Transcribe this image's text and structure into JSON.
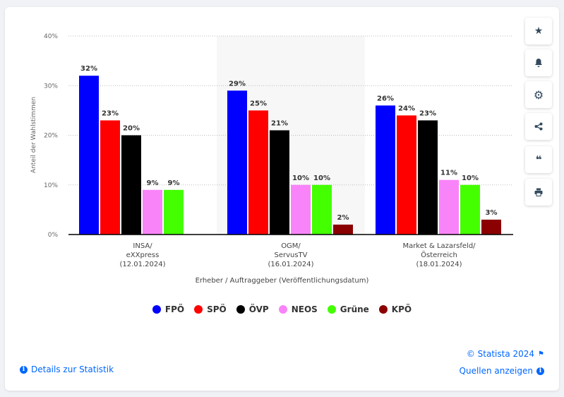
{
  "chart_data": {
    "type": "bar",
    "title": "",
    "xlabel": "Erheber / Auftraggeber (Veröffentlichungsdatum)",
    "ylabel": "Anteil der Wahlstimmen",
    "ylim": [
      0,
      40
    ],
    "yticks": [
      "0%",
      "10%",
      "20%",
      "30%",
      "40%"
    ],
    "grid": true,
    "legend_position": "bottom",
    "categories": [
      [
        "INSA/",
        "eXXpress",
        "(12.01.2024)"
      ],
      [
        "OGM/",
        "ServusTV",
        "(16.01.2024)"
      ],
      [
        "Market & Lazarsfeld/",
        "Österreich",
        "(18.01.2024)"
      ]
    ],
    "series": [
      {
        "name": "FPÖ",
        "color": "#0000ff",
        "values": [
          32,
          29,
          26
        ]
      },
      {
        "name": "SPÖ",
        "color": "#ff0000",
        "values": [
          23,
          25,
          24
        ]
      },
      {
        "name": "ÖVP",
        "color": "#000000",
        "values": [
          20,
          21,
          23
        ]
      },
      {
        "name": "NEOS",
        "color": "#f984f9",
        "values": [
          9,
          10,
          11
        ]
      },
      {
        "name": "Grüne",
        "color": "#44ff00",
        "values": [
          9,
          10,
          10
        ]
      },
      {
        "name": "KPÖ",
        "color": "#8b0000",
        "values": [
          null,
          2,
          3
        ]
      }
    ]
  },
  "footer": {
    "copyright": "© Statista 2024",
    "details": "Details zur Statistik",
    "sources": "Quellen anzeigen"
  },
  "toolbar": [
    "star-icon",
    "bell-icon",
    "gear-icon",
    "share-icon",
    "quote-icon",
    "print-icon"
  ]
}
